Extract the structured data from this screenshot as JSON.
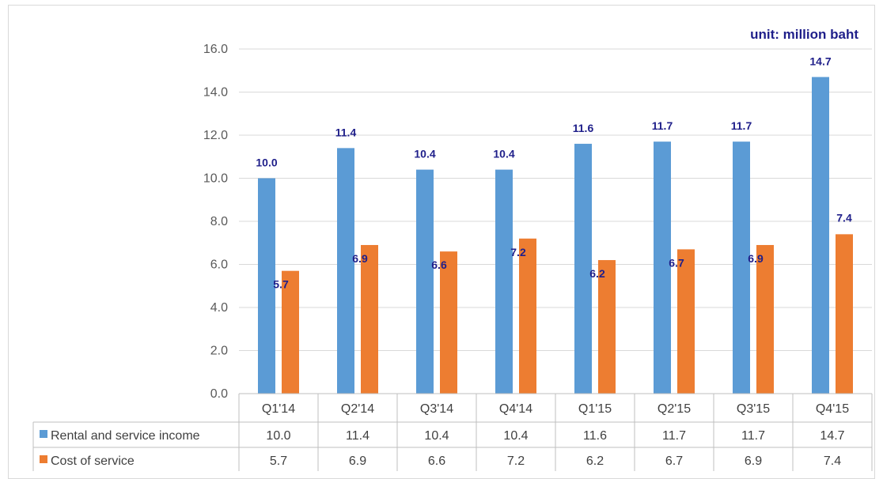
{
  "unit_label": "unit: million baht",
  "colors": {
    "rental": "#5b9bd5",
    "cost": "#ed7d31",
    "data_label": "#1f1f8a",
    "grid": "#d9d9d9"
  },
  "chart_data": {
    "type": "bar",
    "categories": [
      "Q1'14",
      "Q2'14",
      "Q3'14",
      "Q4'14",
      "Q1'15",
      "Q2'15",
      "Q3'15",
      "Q4'15"
    ],
    "series": [
      {
        "name": "Rental and service income",
        "color": "#5b9bd5",
        "values": [
          10.0,
          11.4,
          10.4,
          10.4,
          11.6,
          11.7,
          11.7,
          14.7
        ],
        "labels": [
          "10.0",
          "11.4",
          "10.4",
          "10.4",
          "11.6",
          "11.7",
          "11.7",
          "14.7"
        ]
      },
      {
        "name": "Cost of service",
        "color": "#ed7d31",
        "values": [
          5.7,
          6.9,
          6.6,
          7.2,
          6.2,
          6.7,
          6.9,
          7.4
        ],
        "labels": [
          "5.7",
          "6.9",
          "6.6",
          "7.2",
          "6.2",
          "6.7",
          "6.9",
          "7.4"
        ]
      }
    ],
    "y_ticks": [
      "0.0",
      "2.0",
      "4.0",
      "6.0",
      "8.0",
      "10.0",
      "12.0",
      "14.0",
      "16.0"
    ],
    "ylim": [
      0,
      16
    ],
    "grid": true,
    "legend": "data-table"
  }
}
